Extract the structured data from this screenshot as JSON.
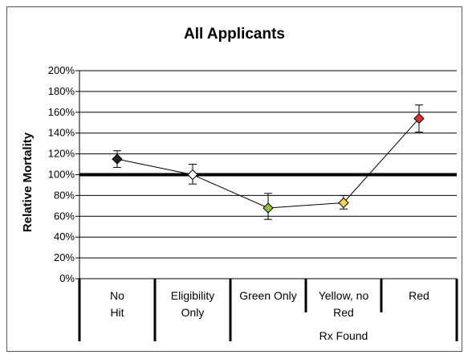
{
  "chart_data": {
    "type": "line",
    "title": "All Applicants",
    "ylabel": "Relative Mortality",
    "xlabel": "",
    "ylim": [
      0,
      200
    ],
    "ytick_step": 20,
    "ytick_labels": [
      "0%",
      "20%",
      "40%",
      "60%",
      "80%",
      "100%",
      "120%",
      "140%",
      "160%",
      "180%",
      "200%"
    ],
    "grid": true,
    "reference_line": 100,
    "categories": [
      {
        "lines": [
          "No",
          "Hit"
        ]
      },
      {
        "lines": [
          "Eligibility",
          "Only"
        ]
      },
      {
        "lines": [
          "Green Only"
        ]
      },
      {
        "lines": [
          "Yellow, no",
          "Red"
        ]
      },
      {
        "lines": [
          "Red"
        ]
      }
    ],
    "group_label": "Rx Found",
    "group_start_index": 2,
    "series": [
      {
        "values": [
          115,
          100,
          68,
          73,
          154
        ],
        "error_low": [
          107,
          91,
          57,
          67,
          141
        ],
        "error_high": [
          123,
          110,
          82,
          80,
          167
        ],
        "marker_colors": [
          "#222222",
          "#ffffff",
          "#8dbf3a",
          "#f2d64a",
          "#e23030"
        ]
      }
    ]
  }
}
